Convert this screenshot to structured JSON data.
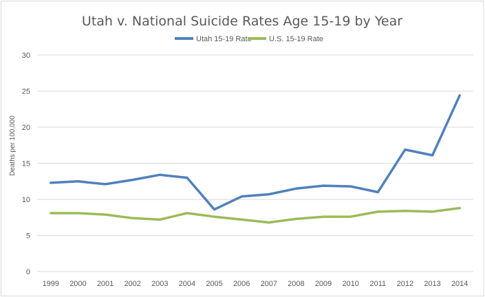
{
  "chart_data": {
    "type": "line",
    "title": "Utah v. National Suicide Rates Age 15-19 by Year",
    "xlabel": "",
    "ylabel": "Deaths per 100,000",
    "ylim": [
      0,
      30
    ],
    "yticks": [
      0,
      5,
      10,
      15,
      20,
      25,
      30
    ],
    "grid": true,
    "legend_position": "top",
    "categories": [
      "1999",
      "2000",
      "2001",
      "2002",
      "2003",
      "2004",
      "2005",
      "2006",
      "2007",
      "2008",
      "2009",
      "2010",
      "2011",
      "2012",
      "2013",
      "2014"
    ],
    "series": [
      {
        "name": "Utah 15-19 Rate",
        "color": "#4f81bd",
        "values": [
          12.3,
          12.5,
          12.1,
          12.7,
          13.4,
          13.0,
          8.6,
          10.4,
          10.7,
          11.5,
          11.9,
          11.8,
          11.0,
          16.9,
          16.1,
          24.4
        ]
      },
      {
        "name": "U.S. 15-19 Rate",
        "color": "#9bbb59",
        "values": [
          8.1,
          8.1,
          7.9,
          7.4,
          7.2,
          8.1,
          7.6,
          7.2,
          6.8,
          7.3,
          7.6,
          7.6,
          8.3,
          8.4,
          8.3,
          8.8
        ]
      }
    ]
  }
}
